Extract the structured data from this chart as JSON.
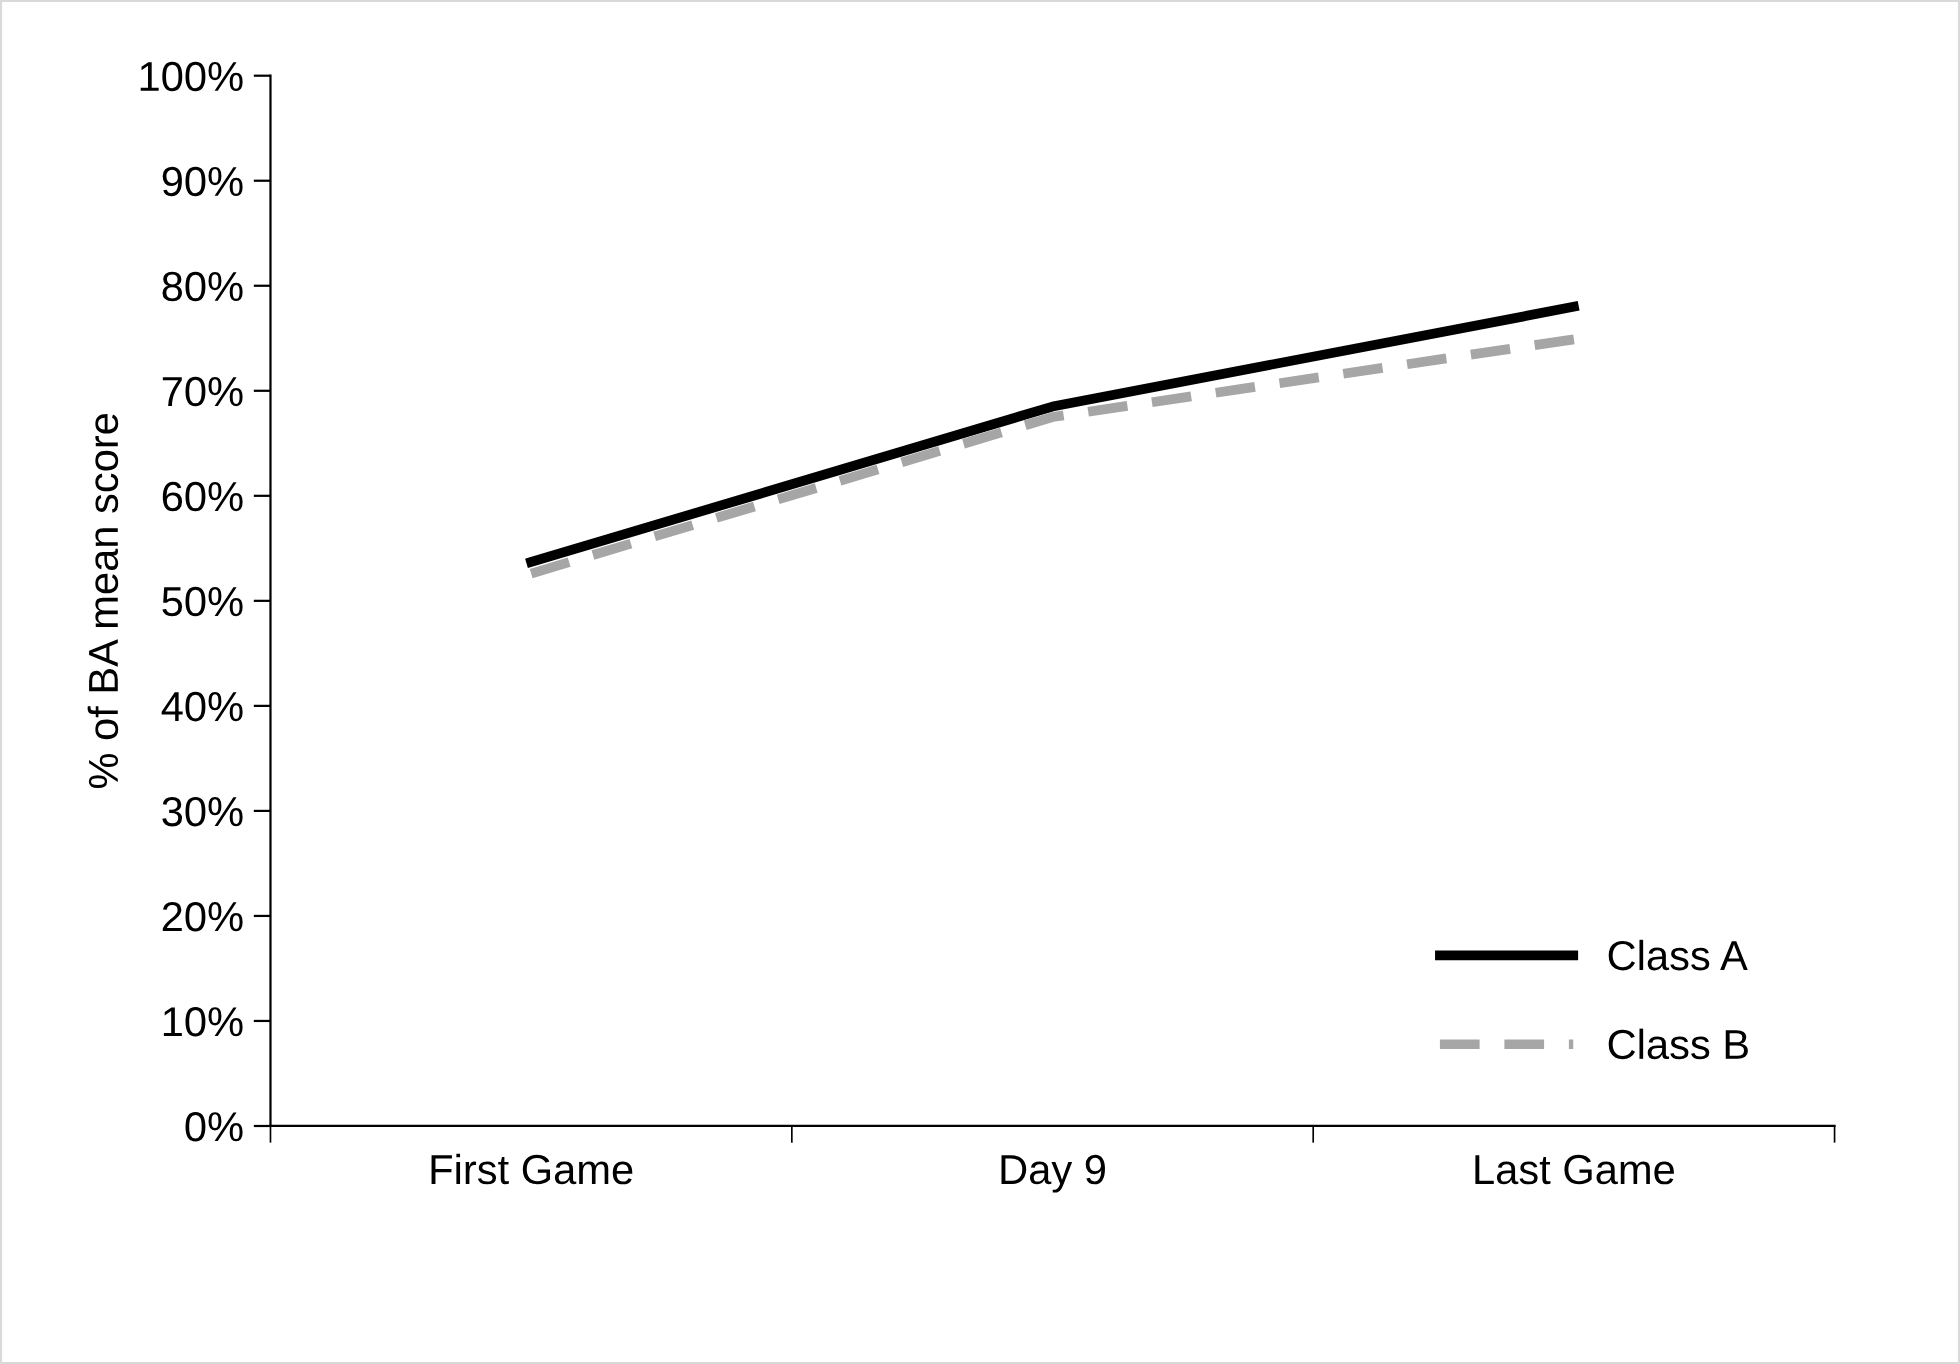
{
  "chart_data": {
    "type": "line",
    "ylabel": "% of BA mean score",
    "categories": [
      "First Game",
      "Day 9",
      "Last Game"
    ],
    "series": [
      {
        "name": "Class A",
        "color": "#000000",
        "values": [
          53.7,
          68.5,
          78.0
        ],
        "line_style": "solid"
      },
      {
        "name": "Class B",
        "color": "#a6a6a6",
        "values": [
          52.6,
          67.5,
          74.9
        ],
        "line_style": "dashed"
      }
    ],
    "ylim": [
      0,
      100
    ],
    "yticks": [
      {
        "value": 0,
        "label": "0%"
      },
      {
        "value": 10,
        "label": "10%"
      },
      {
        "value": 20,
        "label": "20%"
      },
      {
        "value": 30,
        "label": "30%"
      },
      {
        "value": 40,
        "label": "40%"
      },
      {
        "value": 50,
        "label": "50%"
      },
      {
        "value": 60,
        "label": "60%"
      },
      {
        "value": 70,
        "label": "70%"
      },
      {
        "value": 80,
        "label": "80%"
      },
      {
        "value": 90,
        "label": "90%"
      },
      {
        "value": 100,
        "label": "100%"
      }
    ],
    "grid": false,
    "legend": "bottom right",
    "marker": "none"
  }
}
